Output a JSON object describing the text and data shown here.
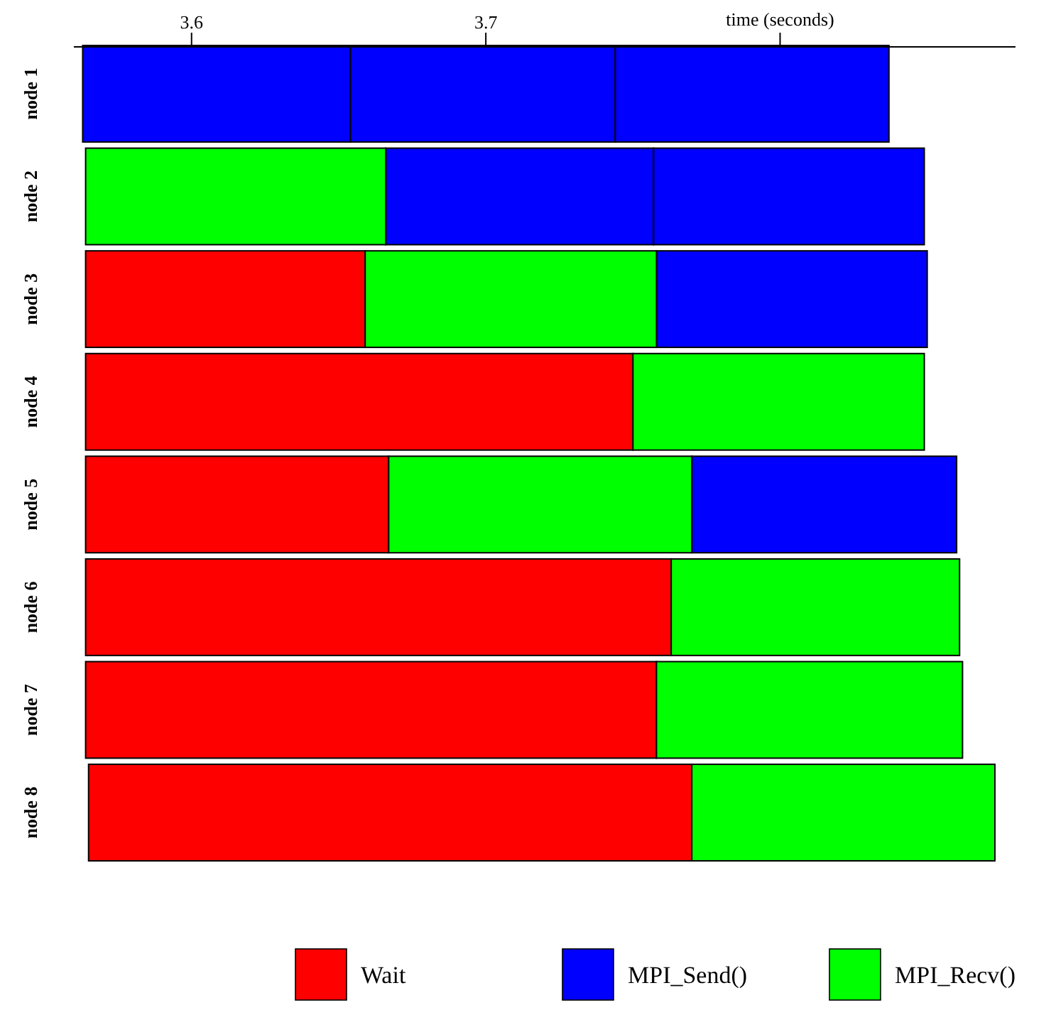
{
  "chart_data": {
    "type": "bar",
    "orientation": "horizontal",
    "xlabel": "time (seconds)",
    "categories": [
      "node 1",
      "node 2",
      "node 3",
      "node 4",
      "node 5",
      "node 6",
      "node 7",
      "node 8"
    ],
    "xlim": [
      3.56,
      3.88
    ],
    "xticks": [
      3.6,
      3.7,
      {
        "value": 3.8,
        "label": null
      }
    ],
    "legend": "bottom",
    "grid": false,
    "series": [
      {
        "name": "Wait",
        "color": "#ff0000",
        "base": [
          null,
          null,
          3.564,
          3.564,
          3.564,
          3.564,
          3.564,
          3.565
        ],
        "values": [
          null,
          null,
          0.095,
          0.186,
          0.103,
          0.199,
          0.194,
          0.205
        ]
      },
      {
        "name": "MPI_Send()",
        "color": "#0000ff",
        "base": [
          3.563,
          3.666,
          3.758,
          null,
          3.77,
          null,
          null,
          null
        ],
        "values": [
          0.091,
          0.091,
          0.092,
          null,
          0.09,
          null,
          null,
          null
        ]
      },
      {
        "name": "MPI_Recv()",
        "color": "#00ff00",
        "base": [
          null,
          3.564,
          3.659,
          3.75,
          3.667,
          3.763,
          3.758,
          3.77
        ],
        "values": [
          null,
          0.102,
          0.099,
          0.099,
          0.103,
          0.098,
          0.104,
          0.103
        ]
      },
      {
        "color": "#0000ff",
        "base": [
          3.654,
          3.757,
          null,
          null,
          null,
          null,
          null,
          null
        ],
        "values": [
          0.09,
          0.092,
          null,
          null,
          null,
          null,
          null,
          null
        ]
      },
      {
        "color": "#0000ff",
        "base": [
          3.744,
          null,
          null,
          null,
          null,
          null,
          null,
          null
        ],
        "values": [
          0.093,
          null,
          null,
          null,
          null,
          null,
          null,
          null
        ]
      }
    ]
  }
}
